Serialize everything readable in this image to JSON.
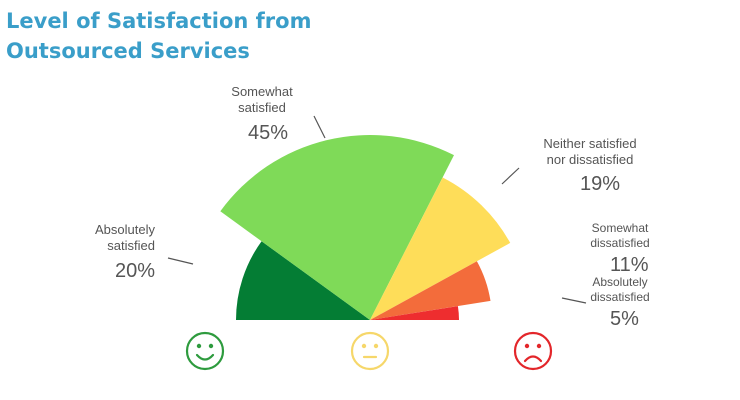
{
  "chart_data": {
    "type": "pie",
    "variant": "half-donut",
    "title_lines": [
      "Level of Satisfaction from",
      "Outsourced Services"
    ],
    "slices": [
      {
        "label_lines": [
          "Absolutely",
          "satisfied"
        ],
        "value": 20,
        "value_label": "20%",
        "color": "#047d34"
      },
      {
        "label_lines": [
          "Somewhat",
          "satisfied"
        ],
        "value": 45,
        "value_label": "45%",
        "color": "#7fda58"
      },
      {
        "label_lines": [
          "Neither satisfied",
          "nor dissatisfied"
        ],
        "value": 19,
        "value_label": "19%",
        "color": "#fedd59"
      },
      {
        "label_lines": [
          "Somewhat",
          "dissatisfied"
        ],
        "value": 11,
        "value_label": "11%",
        "color": "#f36c3b"
      },
      {
        "label_lines": [
          "Absolutely",
          "dissatisfied"
        ],
        "value": 5,
        "value_label": "5%",
        "color": "#ee2d2f"
      }
    ],
    "faces": [
      {
        "icon": "happy-face-icon",
        "color": "#2e9b3e"
      },
      {
        "icon": "neutral-face-icon",
        "color": "#f6d76a"
      },
      {
        "icon": "sad-face-icon",
        "color": "#e3262a"
      }
    ]
  }
}
